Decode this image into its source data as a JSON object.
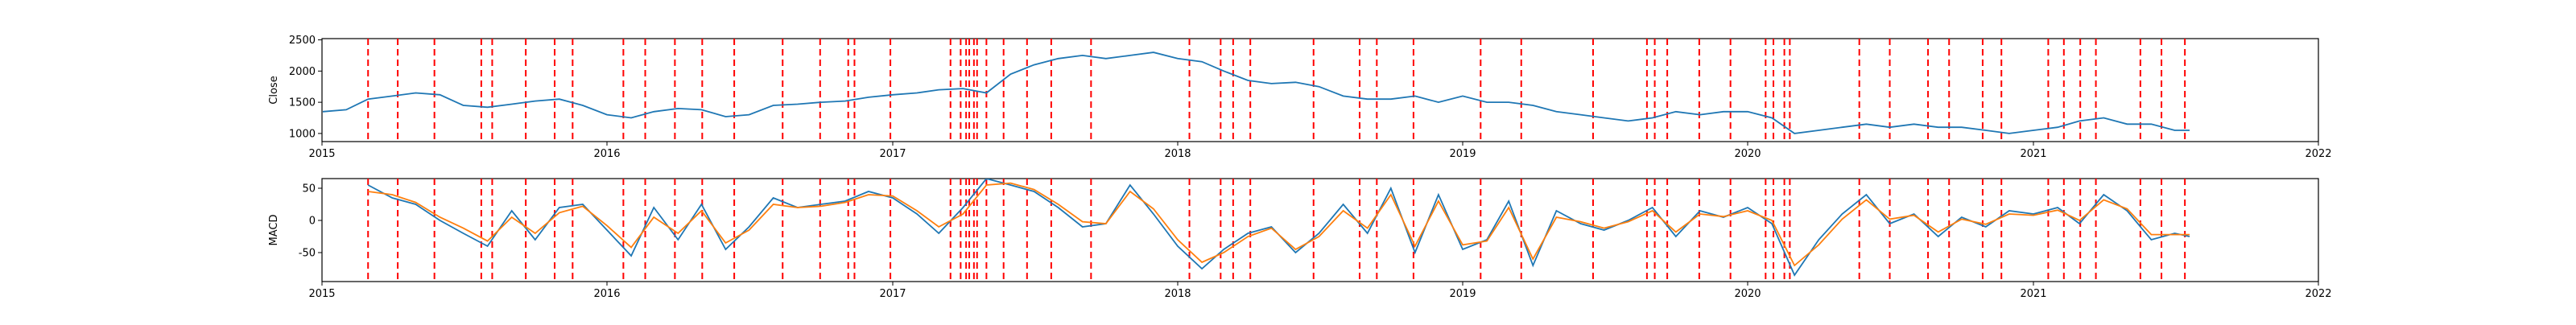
{
  "chart_data": [
    {
      "type": "line",
      "ylabel": "Close",
      "xlabel": "",
      "title": "",
      "xlim": [
        "2015-01-01",
        "2022-01-01"
      ],
      "ylim": [
        870,
        2520
      ],
      "x_ticks": [
        "2015",
        "2016",
        "2017",
        "2018",
        "2019",
        "2020",
        "2021",
        "2022"
      ],
      "y_ticks": [
        1000,
        1500,
        2000,
        2500
      ],
      "grid": false,
      "series": [
        {
          "color": "#1f77b4",
          "x": [
            "2015-01-02",
            "2015-02-01",
            "2015-03-01",
            "2015-04-01",
            "2015-05-01",
            "2015-06-01",
            "2015-07-01",
            "2015-08-01",
            "2015-09-01",
            "2015-10-01",
            "2015-11-01",
            "2015-12-01",
            "2016-01-01",
            "2016-02-01",
            "2016-03-01",
            "2016-04-01",
            "2016-05-01",
            "2016-06-01",
            "2016-07-01",
            "2016-08-01",
            "2016-09-01",
            "2016-10-01",
            "2016-11-01",
            "2016-12-01",
            "2017-01-01",
            "2017-02-01",
            "2017-03-01",
            "2017-04-01",
            "2017-05-01",
            "2017-06-01",
            "2017-07-01",
            "2017-08-01",
            "2017-09-01",
            "2017-10-01",
            "2017-11-01",
            "2017-12-01",
            "2018-01-01",
            "2018-02-01",
            "2018-03-01",
            "2018-04-01",
            "2018-05-01",
            "2018-06-01",
            "2018-07-01",
            "2018-08-01",
            "2018-09-01",
            "2018-10-01",
            "2018-11-01",
            "2018-12-01",
            "2019-01-01",
            "2019-02-01",
            "2019-03-01",
            "2019-04-01",
            "2019-05-01",
            "2019-06-01",
            "2019-07-01",
            "2019-08-01",
            "2019-09-01",
            "2019-10-01",
            "2019-11-01",
            "2019-12-01",
            "2020-01-01",
            "2020-02-01",
            "2020-03-01",
            "2020-04-01",
            "2020-05-01",
            "2020-06-01",
            "2020-07-01",
            "2020-08-01",
            "2020-09-01",
            "2020-10-01",
            "2020-11-01",
            "2020-12-01",
            "2021-01-01",
            "2021-02-01",
            "2021-03-01",
            "2021-04-01",
            "2021-05-01",
            "2021-06-01",
            "2021-07-01",
            "2021-07-20"
          ],
          "values": [
            1350,
            1380,
            1550,
            1600,
            1650,
            1620,
            1450,
            1420,
            1470,
            1520,
            1550,
            1450,
            1300,
            1250,
            1350,
            1400,
            1380,
            1270,
            1300,
            1450,
            1470,
            1500,
            1520,
            1580,
            1620,
            1650,
            1700,
            1720,
            1650,
            1950,
            2100,
            2200,
            2250,
            2200,
            2250,
            2300,
            2200,
            2150,
            2000,
            1850,
            1800,
            1820,
            1750,
            1600,
            1550,
            1550,
            1600,
            1500,
            1600,
            1500,
            1500,
            1450,
            1350,
            1300,
            1250,
            1200,
            1250,
            1350,
            1300,
            1350,
            1350,
            1250,
            1000,
            1050,
            1100,
            1150,
            1100,
            1150,
            1100,
            1100,
            1050,
            1000,
            1050,
            1100,
            1200,
            1250,
            1150,
            1150,
            1050,
            1050
          ]
        }
      ]
    },
    {
      "type": "line",
      "ylabel": "MACD",
      "xlabel": "",
      "title": "",
      "xlim": [
        "2015-01-01",
        "2022-01-01"
      ],
      "ylim": [
        -95,
        65
      ],
      "x_ticks": [
        "2015",
        "2016",
        "2017",
        "2018",
        "2019",
        "2020",
        "2021",
        "2022"
      ],
      "y_ticks": [
        -50,
        0,
        50
      ],
      "grid": false,
      "series": [
        {
          "color": "#1f77b4",
          "x": [
            "2015-03-01",
            "2015-04-01",
            "2015-05-01",
            "2015-06-01",
            "2015-07-01",
            "2015-08-01",
            "2015-09-01",
            "2015-10-01",
            "2015-11-01",
            "2015-12-01",
            "2016-01-01",
            "2016-02-01",
            "2016-03-01",
            "2016-04-01",
            "2016-05-01",
            "2016-06-01",
            "2016-07-01",
            "2016-08-01",
            "2016-09-01",
            "2016-10-01",
            "2016-11-01",
            "2016-12-01",
            "2017-01-01",
            "2017-02-01",
            "2017-03-01",
            "2017-04-01",
            "2017-05-01",
            "2017-06-01",
            "2017-07-01",
            "2017-08-01",
            "2017-09-01",
            "2017-10-01",
            "2017-11-01",
            "2017-12-01",
            "2018-01-01",
            "2018-02-01",
            "2018-03-01",
            "2018-04-01",
            "2018-05-01",
            "2018-06-01",
            "2018-07-01",
            "2018-08-01",
            "2018-09-01",
            "2018-10-01",
            "2018-11-01",
            "2018-12-01",
            "2019-01-01",
            "2019-02-01",
            "2019-03-01",
            "2019-04-01",
            "2019-05-01",
            "2019-06-01",
            "2019-07-01",
            "2019-08-01",
            "2019-09-01",
            "2019-10-01",
            "2019-11-01",
            "2019-12-01",
            "2020-01-01",
            "2020-02-01",
            "2020-03-01",
            "2020-04-01",
            "2020-05-01",
            "2020-06-01",
            "2020-07-01",
            "2020-08-01",
            "2020-09-01",
            "2020-10-01",
            "2020-11-01",
            "2020-12-01",
            "2021-01-01",
            "2021-02-01",
            "2021-03-01",
            "2021-04-01",
            "2021-05-01",
            "2021-06-01",
            "2021-07-01",
            "2021-07-20"
          ],
          "values": [
            55,
            35,
            25,
            0,
            -20,
            -40,
            15,
            -30,
            20,
            25,
            -15,
            -55,
            20,
            -30,
            25,
            -45,
            -10,
            35,
            20,
            25,
            30,
            45,
            35,
            10,
            -20,
            20,
            65,
            55,
            45,
            20,
            -10,
            -5,
            55,
            10,
            -40,
            -75,
            -45,
            -20,
            -10,
            -50,
            -20,
            25,
            -20,
            50,
            -50,
            40,
            -45,
            -30,
            30,
            -70,
            15,
            -5,
            -15,
            0,
            20,
            -25,
            15,
            5,
            20,
            -5,
            -85,
            -30,
            10,
            40,
            -5,
            10,
            -25,
            5,
            -10,
            15,
            10,
            20,
            -5,
            40,
            15,
            -30,
            -20,
            -25
          ]
        },
        {
          "color": "#ff7f0e",
          "x": [
            "2015-03-01",
            "2015-04-01",
            "2015-05-01",
            "2015-06-01",
            "2015-07-01",
            "2015-08-01",
            "2015-09-01",
            "2015-10-01",
            "2015-11-01",
            "2015-12-01",
            "2016-01-01",
            "2016-02-01",
            "2016-03-01",
            "2016-04-01",
            "2016-05-01",
            "2016-06-01",
            "2016-07-01",
            "2016-08-01",
            "2016-09-01",
            "2016-10-01",
            "2016-11-01",
            "2016-12-01",
            "2017-01-01",
            "2017-02-01",
            "2017-03-01",
            "2017-04-01",
            "2017-05-01",
            "2017-06-01",
            "2017-07-01",
            "2017-08-01",
            "2017-09-01",
            "2017-10-01",
            "2017-11-01",
            "2017-12-01",
            "2018-01-01",
            "2018-02-01",
            "2018-03-01",
            "2018-04-01",
            "2018-05-01",
            "2018-06-01",
            "2018-07-01",
            "2018-08-01",
            "2018-09-01",
            "2018-10-01",
            "2018-11-01",
            "2018-12-01",
            "2019-01-01",
            "2019-02-01",
            "2019-03-01",
            "2019-04-01",
            "2019-05-01",
            "2019-06-01",
            "2019-07-01",
            "2019-08-01",
            "2019-09-01",
            "2019-10-01",
            "2019-11-01",
            "2019-12-01",
            "2020-01-01",
            "2020-02-01",
            "2020-03-01",
            "2020-04-01",
            "2020-05-01",
            "2020-06-01",
            "2020-07-01",
            "2020-08-01",
            "2020-09-01",
            "2020-10-01",
            "2020-11-01",
            "2020-12-01",
            "2021-01-01",
            "2021-02-01",
            "2021-03-01",
            "2021-04-01",
            "2021-05-01",
            "2021-06-01",
            "2021-07-01",
            "2021-07-20"
          ],
          "values": [
            45,
            40,
            28,
            5,
            -12,
            -32,
            5,
            -20,
            12,
            22,
            -8,
            -42,
            5,
            -20,
            15,
            -35,
            -15,
            25,
            20,
            22,
            28,
            40,
            38,
            15,
            -10,
            10,
            55,
            58,
            48,
            25,
            -2,
            -5,
            45,
            18,
            -30,
            -65,
            -50,
            -25,
            -12,
            -45,
            -25,
            15,
            -12,
            40,
            -40,
            30,
            -38,
            -32,
            20,
            -60,
            5,
            -2,
            -12,
            -2,
            15,
            -18,
            10,
            6,
            15,
            0,
            -70,
            -38,
            2,
            32,
            2,
            8,
            -18,
            2,
            -6,
            10,
            8,
            16,
            0,
            32,
            18,
            -22,
            -22,
            -22
          ]
        }
      ]
    }
  ],
  "event_dates": [
    "2015-03-01",
    "2015-04-08",
    "2015-05-25",
    "2015-07-24",
    "2015-08-07",
    "2015-09-19",
    "2015-10-26",
    "2015-11-18",
    "2016-01-22",
    "2016-02-19",
    "2016-03-28",
    "2016-05-02",
    "2016-06-12",
    "2016-08-13",
    "2016-09-30",
    "2016-11-05",
    "2016-11-13",
    "2016-12-29",
    "2017-03-16",
    "2017-03-29",
    "2017-04-05",
    "2017-04-09",
    "2017-04-15",
    "2017-04-19",
    "2017-05-01",
    "2017-05-23",
    "2017-06-22",
    "2017-07-23",
    "2017-09-12",
    "2018-01-16",
    "2018-02-25",
    "2018-03-13",
    "2018-04-04",
    "2018-06-24",
    "2018-08-22",
    "2018-09-13",
    "2018-10-30",
    "2019-01-24",
    "2019-03-17",
    "2019-06-17",
    "2019-08-25",
    "2019-09-04",
    "2019-09-20",
    "2019-10-31",
    "2019-12-10",
    "2020-01-24",
    "2020-02-03",
    "2020-02-17",
    "2020-02-24",
    "2020-05-23",
    "2020-07-01",
    "2020-08-19",
    "2020-09-15",
    "2020-10-28",
    "2020-11-21",
    "2021-01-20",
    "2021-02-09",
    "2021-03-02",
    "2021-03-22",
    "2021-05-18",
    "2021-06-14",
    "2021-07-14"
  ],
  "colors": {
    "line_blue": "#1f77b4",
    "line_orange": "#ff7f0e",
    "event_lines": "#ff0000",
    "axes": "#000000"
  }
}
